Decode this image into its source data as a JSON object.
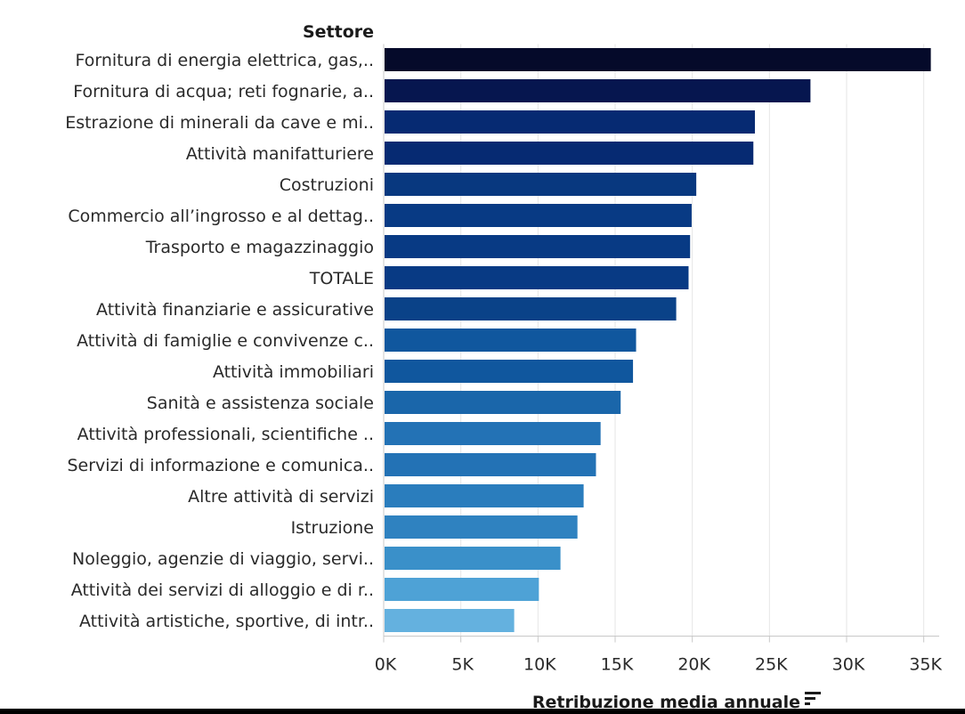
{
  "chart_data": {
    "type": "bar",
    "orientation": "horizontal",
    "ylabel": "Settore",
    "xlabel": "Retribuzione media annuale",
    "xlim": [
      0,
      36000
    ],
    "xticks": [
      0,
      5000,
      10000,
      15000,
      20000,
      25000,
      30000,
      35000
    ],
    "xtick_labels": [
      "0K",
      "5K",
      "10K",
      "15K",
      "20K",
      "25K",
      "30K",
      "35K"
    ],
    "grid": true,
    "sort_icon": "sort-descending-icon",
    "categories": [
      "Fornitura di energia elettrica, gas,..",
      "Fornitura di acqua; reti fognarie, a..",
      "Estrazione di minerali da cave e mi..",
      "Attività manifatturiere",
      "Costruzioni",
      "Commercio all’ingrosso e al dettag..",
      "Trasporto e magazzinaggio",
      "TOTALE",
      "Attività finanziarie e assicurative",
      "Attività di famiglie e convivenze c..",
      "Attività immobiliari",
      "Sanità e assistenza sociale",
      "Attività professionali, scientifiche ..",
      "Servizi di informazione e comunica..",
      "Altre attività di servizi",
      "Istruzione",
      "Noleggio, agenzie di viaggio, servi..",
      "Attività dei servizi di alloggio e di r..",
      "Attività artistiche, sportive, di intr.."
    ],
    "values": [
      35400,
      27600,
      24000,
      23900,
      20200,
      19900,
      19800,
      19700,
      18900,
      16300,
      16100,
      15300,
      14000,
      13700,
      12900,
      12500,
      11400,
      10000,
      8400
    ],
    "colors": [
      "#050a2a",
      "#06164f",
      "#062a72",
      "#062a72",
      "#08387f",
      "#083a84",
      "#083a84",
      "#083a84",
      "#0a4288",
      "#10579e",
      "#10579e",
      "#1a66aa",
      "#2372b5",
      "#2372b5",
      "#2a7dbd",
      "#2f82c0",
      "#3a90c9",
      "#4ea2d6",
      "#64b1df"
    ]
  }
}
